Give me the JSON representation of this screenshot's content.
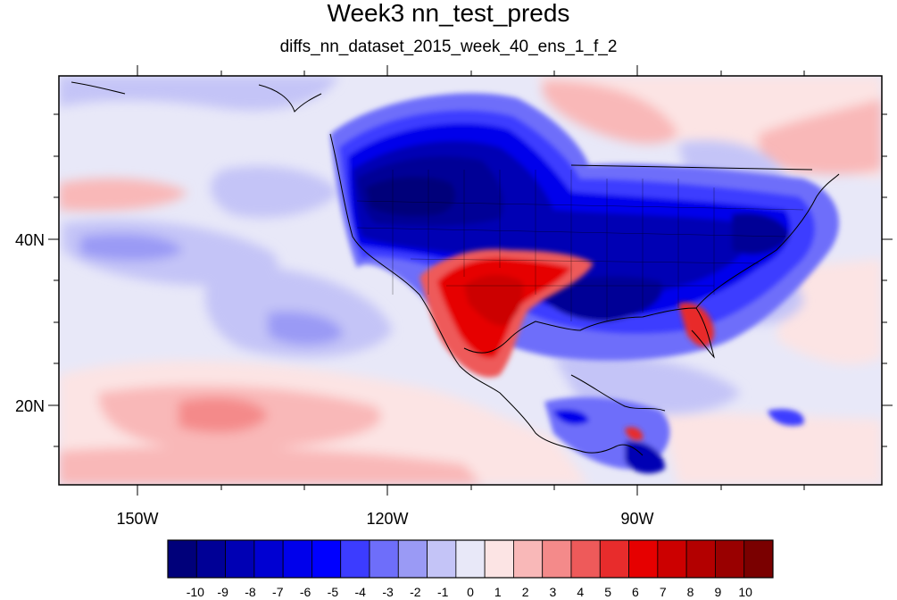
{
  "title": "Week3 nn_test_preds",
  "subtitle": "diffs_nn_dataset_2015_week_40_ens_1_f_2",
  "axes": {
    "lon_labels": [
      "150W",
      "120W",
      "90W"
    ],
    "lat_labels": [
      "40N",
      "20N"
    ]
  },
  "colorbar": {
    "labels": [
      "-10",
      "-9",
      "-8",
      "-7",
      "-6",
      "-5",
      "-4",
      "-3",
      "-2",
      "-1",
      "0",
      "1",
      "2",
      "3",
      "4",
      "5",
      "6",
      "7",
      "8",
      "9",
      "10"
    ],
    "colors": [
      "#00007a",
      "#000096",
      "#0000b4",
      "#0000d2",
      "#0000eb",
      "#0000ff",
      "#3c3cff",
      "#6e6efa",
      "#9a9af5",
      "#c4c4f7",
      "#e8e8f8",
      "#fce4e4",
      "#f9b8b8",
      "#f48a8a",
      "#ee5a5a",
      "#e82c2c",
      "#e60000",
      "#cc0000",
      "#b30000",
      "#990000",
      "#7a0000"
    ]
  }
}
